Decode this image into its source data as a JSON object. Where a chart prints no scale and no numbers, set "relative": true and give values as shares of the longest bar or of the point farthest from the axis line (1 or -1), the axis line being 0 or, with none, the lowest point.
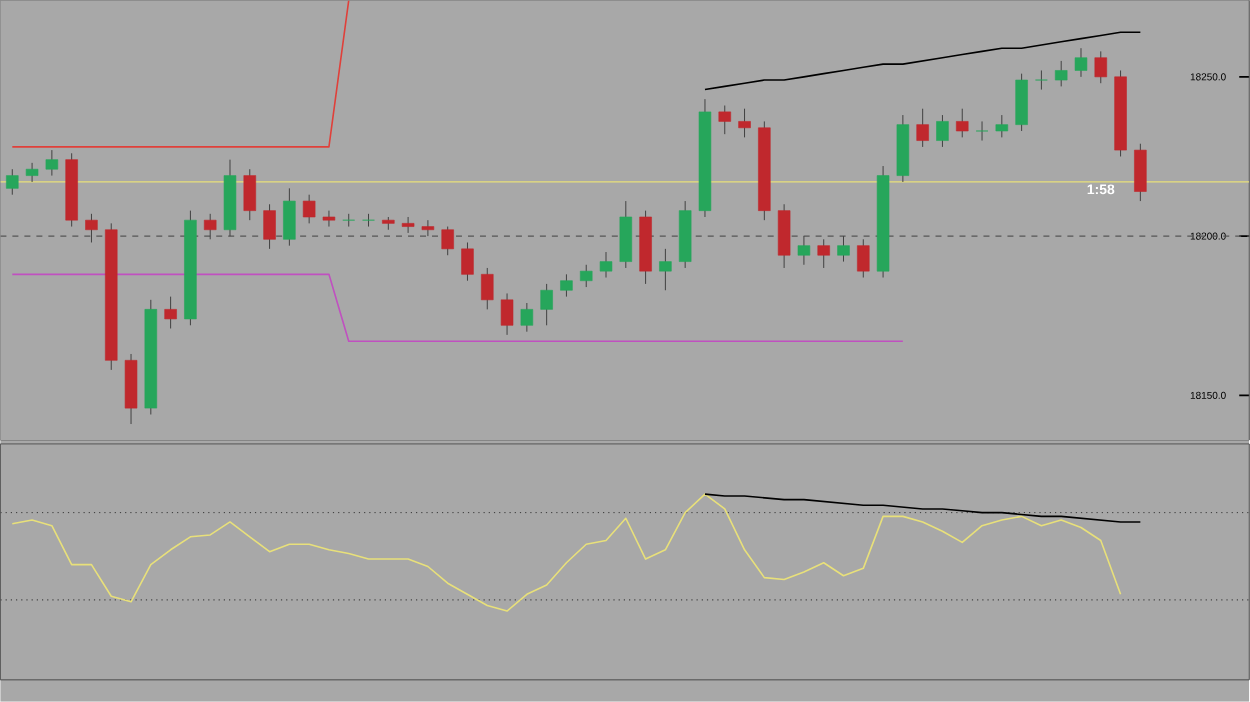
{
  "chart_data": [
    {
      "type": "candlestick",
      "ylim": [
        18136,
        18274
      ],
      "tick_labels": "y",
      "yticks": [
        {
          "value": 18150,
          "label": "18150.0"
        },
        {
          "value": 18200,
          "label": "18200.0"
        },
        {
          "value": 18250,
          "label": "18250.0"
        }
      ],
      "categories": [
        null,
        null,
        null,
        null,
        null,
        null,
        null,
        null,
        null,
        null,
        null,
        null,
        null,
        null,
        null,
        null,
        null,
        null,
        null,
        null,
        null,
        null,
        null,
        null,
        null,
        null,
        null,
        null,
        null,
        null,
        null,
        null,
        null,
        null,
        null,
        null,
        null,
        null,
        null,
        null,
        null,
        null,
        null,
        null,
        null,
        null,
        null,
        null,
        null,
        null,
        null,
        null,
        null,
        null,
        null,
        null,
        null,
        null
      ],
      "ohlc": [
        [
          18215,
          18221,
          18213,
          18219
        ],
        [
          18219,
          18223,
          18217,
          18221
        ],
        [
          18221,
          18227,
          18219,
          18224
        ],
        [
          18224,
          18226,
          18203,
          18205
        ],
        [
          18205,
          18207,
          18198,
          18202
        ],
        [
          18202,
          18204,
          18158,
          18161
        ],
        [
          18161,
          18163,
          18141,
          18146
        ],
        [
          18146,
          18180,
          18144,
          18177
        ],
        [
          18177,
          18181,
          18171,
          18174
        ],
        [
          18174,
          18208,
          18172,
          18205
        ],
        [
          18205,
          18207,
          18199,
          18202
        ],
        [
          18202,
          18224,
          18200,
          18219
        ],
        [
          18219,
          18221,
          18205,
          18208
        ],
        [
          18208,
          18210,
          18196,
          18199
        ],
        [
          18199,
          18215,
          18197,
          18211
        ],
        [
          18211,
          18213,
          18204,
          18206
        ],
        [
          18206,
          18208,
          18203,
          18205
        ],
        [
          18205,
          18207,
          18203,
          18205
        ],
        [
          18205,
          18207,
          18203,
          18205
        ],
        [
          18205,
          18206,
          18202,
          18204
        ],
        [
          18204,
          18206,
          18201,
          18203
        ],
        [
          18203,
          18205,
          18200,
          18202
        ],
        [
          18202,
          18203,
          18194,
          18196
        ],
        [
          18196,
          18198,
          18186,
          18188
        ],
        [
          18188,
          18190,
          18177,
          18180
        ],
        [
          18180,
          18182,
          18169,
          18172
        ],
        [
          18172,
          18179,
          18170,
          18177
        ],
        [
          18177,
          18185,
          18172,
          18183
        ],
        [
          18183,
          18188,
          18181,
          18186
        ],
        [
          18186,
          18191,
          18184,
          18189
        ],
        [
          18189,
          18195,
          18187,
          18192
        ],
        [
          18192,
          18211,
          18190,
          18206
        ],
        [
          18206,
          18208,
          18185,
          18189
        ],
        [
          18189,
          18196,
          18183,
          18192
        ],
        [
          18192,
          18211,
          18190,
          18208
        ],
        [
          18208,
          18243,
          18206,
          18239
        ],
        [
          18239,
          18241,
          18232,
          18236
        ],
        [
          18236,
          18240,
          18231,
          18234
        ],
        [
          18234,
          18236,
          18205,
          18208
        ],
        [
          18208,
          18210,
          18190,
          18194
        ],
        [
          18194,
          18200,
          18191,
          18197
        ],
        [
          18197,
          18199,
          18190,
          18194
        ],
        [
          18194,
          18200,
          18192,
          18197
        ],
        [
          18197,
          18199,
          18187,
          18189
        ],
        [
          18189,
          18222,
          18187,
          18219
        ],
        [
          18219,
          18238,
          18217,
          18235
        ],
        [
          18235,
          18240,
          18228,
          18230
        ],
        [
          18230,
          18238,
          18228,
          18236
        ],
        [
          18236,
          18240,
          18231,
          18233
        ],
        [
          18233,
          18236,
          18230,
          18233
        ],
        [
          18233,
          18238,
          18231,
          18235
        ],
        [
          18235,
          18251,
          18233,
          18249
        ],
        [
          18249,
          18252,
          18246,
          18249
        ],
        [
          18249,
          18255,
          18247,
          18252
        ],
        [
          18252,
          18259,
          18250,
          18256
        ],
        [
          18256,
          18258,
          18248,
          18250
        ],
        [
          18250,
          18252,
          18225,
          18227
        ],
        [
          18227,
          18229,
          18211,
          18214
        ]
      ],
      "colors": [
        "#26a65b",
        "#26a65b",
        "#26a65b",
        "#c0282d",
        "#c0282d",
        "#c0282d",
        "#c0282d",
        "#26a65b",
        "#c0282d",
        "#26a65b",
        "#c0282d",
        "#26a65b",
        "#c0282d",
        "#c0282d",
        "#26a65b",
        "#c0282d",
        "#c0282d",
        "#26a65b",
        "#26a65b",
        "#c0282d",
        "#c0282d",
        "#c0282d",
        "#c0282d",
        "#c0282d",
        "#c0282d",
        "#c0282d",
        "#26a65b",
        "#26a65b",
        "#26a65b",
        "#26a65b",
        "#26a65b",
        "#26a65b",
        "#c0282d",
        "#26a65b",
        "#26a65b",
        "#26a65b",
        "#c0282d",
        "#c0282d",
        "#c0282d",
        "#c0282d",
        "#26a65b",
        "#c0282d",
        "#26a65b",
        "#c0282d",
        "#26a65b",
        "#26a65b",
        "#c0282d",
        "#26a65b",
        "#c0282d",
        "#26a65b",
        "#26a65b",
        "#26a65b",
        "#26a65b",
        "#26a65b",
        "#26a65b",
        "#c0282d",
        "#c0282d",
        "#c0282d"
      ],
      "series": [
        {
          "type": "line",
          "color": "#e0403a",
          "values": [
            18228,
            18228,
            18228,
            18228,
            18228,
            18228,
            18228,
            18228,
            18228,
            18228,
            18228,
            18228,
            18228,
            18228,
            18228,
            18228,
            18228,
            18274,
            null,
            null,
            null,
            null,
            null,
            null,
            null,
            null,
            null,
            null,
            null,
            null,
            null,
            null,
            null,
            null,
            null,
            null,
            null,
            null,
            null,
            null,
            null,
            null,
            null,
            null,
            null,
            null,
            null,
            null,
            null,
            null,
            null,
            null,
            null,
            null,
            null,
            null,
            null,
            null
          ]
        },
        {
          "type": "line",
          "color": "#c050c0",
          "values": [
            18188,
            18188,
            18188,
            18188,
            18188,
            18188,
            18188,
            18188,
            18188,
            18188,
            18188,
            18188,
            18188,
            18188,
            18188,
            18188,
            18188,
            18167,
            18167,
            18167,
            18167,
            18167,
            18167,
            18167,
            18167,
            18167,
            18167,
            18167,
            18167,
            18167,
            18167,
            18167,
            18167,
            18167,
            18167,
            18167,
            18167,
            18167,
            18167,
            18167,
            18167,
            18167,
            18167,
            18167,
            18167,
            18167,
            null,
            null,
            null,
            null,
            null,
            null,
            null,
            null,
            null,
            null,
            null,
            null
          ]
        },
        {
          "type": "line",
          "color": "#000000",
          "values": [
            null,
            null,
            null,
            null,
            null,
            null,
            null,
            null,
            null,
            null,
            null,
            null,
            null,
            null,
            null,
            null,
            null,
            null,
            null,
            null,
            null,
            null,
            null,
            null,
            null,
            null,
            null,
            null,
            null,
            null,
            null,
            null,
            null,
            null,
            null,
            18246,
            18247,
            18248,
            18249,
            18249,
            18250,
            18251,
            18252,
            18253,
            18254,
            18254,
            18255,
            18256,
            18257,
            18258,
            18259,
            18259,
            18260,
            18261,
            18262,
            18263,
            18264,
            18264
          ]
        }
      ],
      "ref_lines": [
        {
          "axis": "y",
          "value": 18217,
          "color": "#e8e07a",
          "line_style": "solid"
        },
        {
          "axis": "y",
          "value": 18200,
          "color": "#555555",
          "line_style": "dashed"
        }
      ],
      "annotations": [
        "1:58"
      ]
    },
    {
      "type": "line",
      "relative": true,
      "tick_labels": false,
      "categories": [
        null,
        null,
        null,
        null,
        null,
        null,
        null,
        null,
        null,
        null,
        null,
        null,
        null,
        null,
        null,
        null,
        null,
        null,
        null,
        null,
        null,
        null,
        null,
        null,
        null,
        null,
        null,
        null,
        null,
        null,
        null,
        null,
        null,
        null,
        null,
        null,
        null,
        null,
        null,
        null,
        null,
        null,
        null,
        null,
        null,
        null,
        null,
        null,
        null,
        null,
        null,
        null,
        null,
        null,
        null,
        null,
        null,
        null
      ],
      "series": [
        {
          "color": "#e8e07a",
          "values": [
            0.84,
            0.86,
            0.83,
            0.62,
            0.62,
            0.45,
            0.42,
            0.62,
            0.7,
            0.77,
            0.78,
            0.85,
            0.77,
            0.69,
            0.73,
            0.73,
            0.7,
            0.68,
            0.65,
            0.65,
            0.65,
            0.61,
            0.52,
            0.46,
            0.4,
            0.37,
            0.46,
            0.51,
            0.63,
            0.73,
            0.75,
            0.87,
            0.65,
            0.7,
            0.9,
            1.0,
            0.92,
            0.7,
            0.55,
            0.54,
            0.58,
            0.63,
            0.56,
            0.6,
            0.88,
            0.88,
            0.85,
            0.8,
            0.74,
            0.83,
            0.86,
            0.88,
            0.83,
            0.86,
            0.82,
            0.75,
            0.46,
            null
          ]
        },
        {
          "color": "#000000",
          "values": [
            null,
            null,
            null,
            null,
            null,
            null,
            null,
            null,
            null,
            null,
            null,
            null,
            null,
            null,
            null,
            null,
            null,
            null,
            null,
            null,
            null,
            null,
            null,
            null,
            null,
            null,
            null,
            null,
            null,
            null,
            null,
            null,
            null,
            null,
            null,
            1.0,
            0.99,
            0.99,
            0.98,
            0.97,
            0.97,
            0.96,
            0.95,
            0.94,
            0.94,
            0.93,
            0.92,
            0.92,
            0.91,
            0.9,
            0.9,
            0.89,
            0.88,
            0.88,
            0.87,
            0.86,
            0.85,
            0.85
          ]
        }
      ],
      "ref_lines": [
        {
          "axis": "y",
          "value": 0.9,
          "color": "#444444",
          "line_style": "dotted"
        },
        {
          "axis": "y",
          "value": 0.43,
          "color": "#444444",
          "line_style": "dotted"
        }
      ]
    }
  ]
}
